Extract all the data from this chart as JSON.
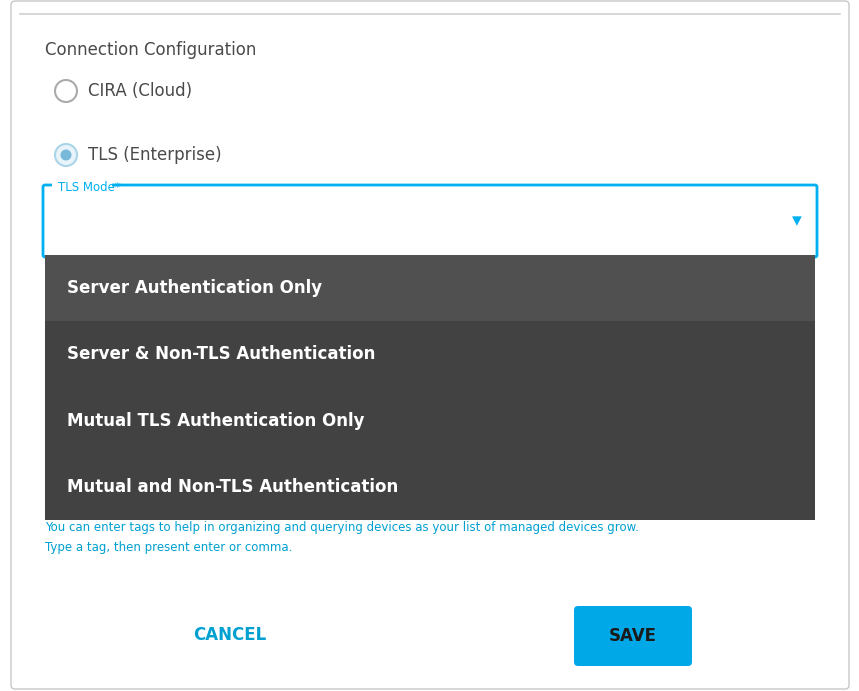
{
  "bg_color": "#ffffff",
  "border_color": "#c8c8c8",
  "title_text": "Connection Configuration",
  "title_color": "#4a4a4a",
  "radio_options": [
    "CIRA (Cloud)",
    "TLS (Enterprise)"
  ],
  "radio_selected": 1,
  "radio_outer_color_selected": "#aad4e8",
  "radio_inner_color_selected": "#78b8d8",
  "radio_color_unselected": "#aaaaaa",
  "radio_text_color": "#4a4a4a",
  "tls_label": "TLS Mode*",
  "tls_label_color": "#00b0f0",
  "tls_border_color": "#00b0f0",
  "dropdown_arrow_color": "#00b0f0",
  "dropdown_bg": "#424242",
  "dropdown_item1_bg": "#505050",
  "dropdown_items": [
    "Server Authentication Only",
    "Server & Non-TLS Authentication",
    "Mutual TLS Authentication Only",
    "Mutual and Non-TLS Authentication"
  ],
  "dropdown_text_color": "#ffffff",
  "info_text_line1": "You can enter tags to help in organizing and querying devices as your list of managed devices grow.",
  "info_text_line2": "Type a tag, then present enter or comma.",
  "info_text_color": "#00a0d0",
  "cancel_text": "CANCEL",
  "cancel_color": "#00a0d0",
  "save_text": "SAVE",
  "save_bg": "#00a8e8",
  "save_text_color": "#1a1a1a",
  "top_border_color": "#d0d0d0",
  "fig_width": 8.59,
  "fig_height": 6.91,
  "dpi": 100
}
